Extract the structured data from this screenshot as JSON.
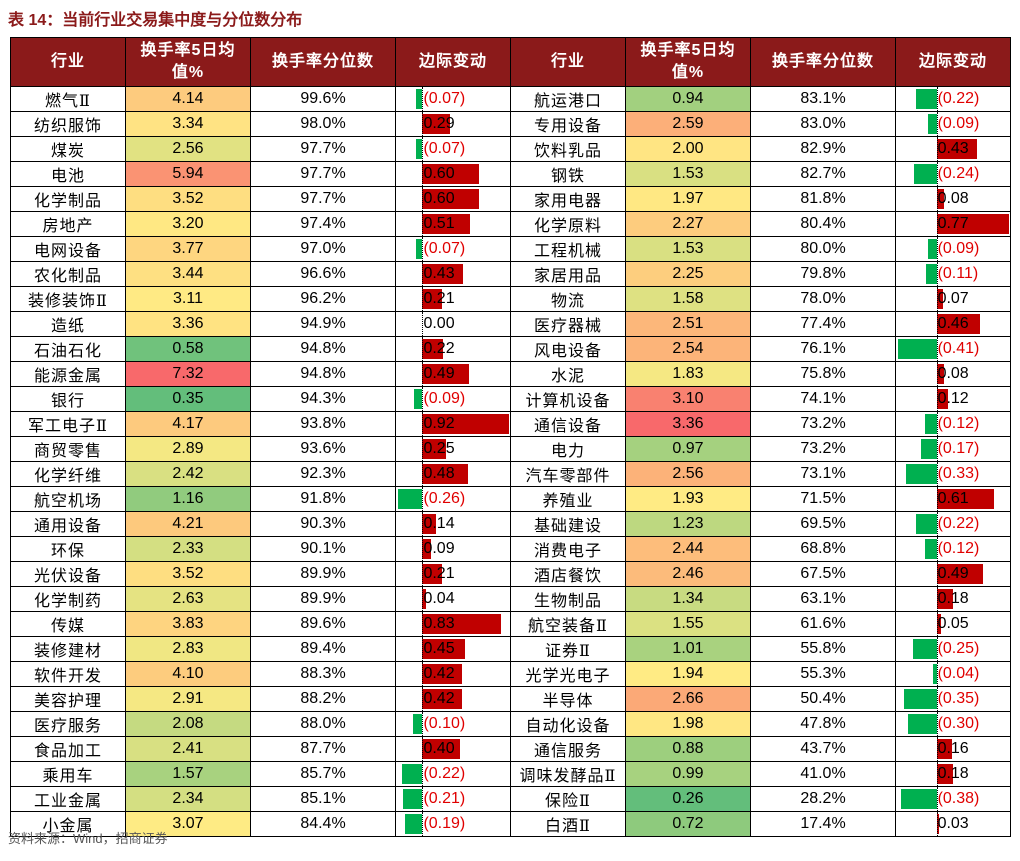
{
  "header": {
    "title": "表 14：当前行业交易集中度与分位数分布",
    "source": "资料来源：Wind，招商证券"
  },
  "table": {
    "columns": [
      "行业",
      "换手率5日均值%",
      "换手率分位数",
      "边际变动"
    ],
    "left": [
      {
        "industry": "燃气Ⅱ",
        "turnover": "4.14",
        "percentile": "99.6%",
        "change": {
          "value": -0.07,
          "label": "(0.07)"
        }
      },
      {
        "industry": "纺织服饰",
        "turnover": "3.34",
        "percentile": "98.0%",
        "change": {
          "value": 0.29,
          "label": "0.29"
        }
      },
      {
        "industry": "煤炭",
        "turnover": "2.56",
        "percentile": "97.7%",
        "change": {
          "value": -0.07,
          "label": "(0.07)"
        }
      },
      {
        "industry": "电池",
        "turnover": "5.94",
        "percentile": "97.7%",
        "change": {
          "value": 0.6,
          "label": "0.60"
        }
      },
      {
        "industry": "化学制品",
        "turnover": "3.52",
        "percentile": "97.7%",
        "change": {
          "value": 0.6,
          "label": "0.60"
        }
      },
      {
        "industry": "房地产",
        "turnover": "3.20",
        "percentile": "97.4%",
        "change": {
          "value": 0.51,
          "label": "0.51"
        }
      },
      {
        "industry": "电网设备",
        "turnover": "3.77",
        "percentile": "97.0%",
        "change": {
          "value": -0.07,
          "label": "(0.07)"
        }
      },
      {
        "industry": "农化制品",
        "turnover": "3.44",
        "percentile": "96.6%",
        "change": {
          "value": 0.43,
          "label": "0.43"
        }
      },
      {
        "industry": "装修装饰Ⅱ",
        "turnover": "3.11",
        "percentile": "96.2%",
        "change": {
          "value": 0.21,
          "label": "0.21"
        }
      },
      {
        "industry": "造纸",
        "turnover": "3.36",
        "percentile": "94.9%",
        "change": {
          "value": 0,
          "label": "0.00"
        }
      },
      {
        "industry": "石油石化",
        "turnover": "0.58",
        "percentile": "94.8%",
        "change": {
          "value": 0.22,
          "label": "0.22"
        }
      },
      {
        "industry": "能源金属",
        "turnover": "7.32",
        "percentile": "94.8%",
        "change": {
          "value": 0.49,
          "label": "0.49"
        }
      },
      {
        "industry": "银行",
        "turnover": "0.35",
        "percentile": "94.3%",
        "change": {
          "value": -0.09,
          "label": "(0.09)"
        }
      },
      {
        "industry": "军工电子Ⅱ",
        "turnover": "4.17",
        "percentile": "93.8%",
        "change": {
          "value": 0.92,
          "label": "0.92"
        }
      },
      {
        "industry": "商贸零售",
        "turnover": "2.89",
        "percentile": "93.6%",
        "change": {
          "value": 0.25,
          "label": "0.25"
        }
      },
      {
        "industry": "化学纤维",
        "turnover": "2.42",
        "percentile": "92.3%",
        "change": {
          "value": 0.48,
          "label": "0.48"
        }
      },
      {
        "industry": "航空机场",
        "turnover": "1.16",
        "percentile": "91.8%",
        "change": {
          "value": -0.26,
          "label": "(0.26)"
        }
      },
      {
        "industry": "通用设备",
        "turnover": "4.21",
        "percentile": "90.3%",
        "change": {
          "value": 0.14,
          "label": "0.14"
        }
      },
      {
        "industry": "环保",
        "turnover": "2.33",
        "percentile": "90.1%",
        "change": {
          "value": 0.09,
          "label": "0.09"
        }
      },
      {
        "industry": "光伏设备",
        "turnover": "3.52",
        "percentile": "89.9%",
        "change": {
          "value": 0.21,
          "label": "0.21"
        }
      },
      {
        "industry": "化学制药",
        "turnover": "2.63",
        "percentile": "89.9%",
        "change": {
          "value": 0.04,
          "label": "0.04"
        }
      },
      {
        "industry": "传媒",
        "turnover": "3.83",
        "percentile": "89.6%",
        "change": {
          "value": 0.83,
          "label": "0.83"
        }
      },
      {
        "industry": "装修建材",
        "turnover": "2.83",
        "percentile": "89.4%",
        "change": {
          "value": 0.45,
          "label": "0.45"
        }
      },
      {
        "industry": "软件开发",
        "turnover": "4.10",
        "percentile": "88.3%",
        "change": {
          "value": 0.42,
          "label": "0.42"
        }
      },
      {
        "industry": "美容护理",
        "turnover": "2.91",
        "percentile": "88.2%",
        "change": {
          "value": 0.42,
          "label": "0.42"
        }
      },
      {
        "industry": "医疗服务",
        "turnover": "2.08",
        "percentile": "88.0%",
        "change": {
          "value": -0.1,
          "label": "(0.10)"
        }
      },
      {
        "industry": "食品加工",
        "turnover": "2.41",
        "percentile": "87.7%",
        "change": {
          "value": 0.4,
          "label": "0.40"
        }
      },
      {
        "industry": "乘用车",
        "turnover": "1.57",
        "percentile": "85.7%",
        "change": {
          "value": -0.22,
          "label": "(0.22)"
        }
      },
      {
        "industry": "工业金属",
        "turnover": "2.34",
        "percentile": "85.1%",
        "change": {
          "value": -0.21,
          "label": "(0.21)"
        }
      },
      {
        "industry": "小金属",
        "turnover": "3.07",
        "percentile": "84.4%",
        "change": {
          "value": -0.19,
          "label": "(0.19)"
        }
      }
    ],
    "right": [
      {
        "industry": "航运港口",
        "turnover": "0.94",
        "percentile": "83.1%",
        "change": {
          "value": -0.22,
          "label": "(0.22)"
        }
      },
      {
        "industry": "专用设备",
        "turnover": "2.59",
        "percentile": "83.0%",
        "change": {
          "value": -0.09,
          "label": "(0.09)"
        }
      },
      {
        "industry": "饮料乳品",
        "turnover": "2.00",
        "percentile": "82.9%",
        "change": {
          "value": 0.43,
          "label": "0.43"
        }
      },
      {
        "industry": "钢铁",
        "turnover": "1.53",
        "percentile": "82.7%",
        "change": {
          "value": -0.24,
          "label": "(0.24)"
        }
      },
      {
        "industry": "家用电器",
        "turnover": "1.97",
        "percentile": "81.8%",
        "change": {
          "value": 0.08,
          "label": "0.08"
        }
      },
      {
        "industry": "化学原料",
        "turnover": "2.27",
        "percentile": "80.4%",
        "change": {
          "value": 0.77,
          "label": "0.77"
        }
      },
      {
        "industry": "工程机械",
        "turnover": "1.53",
        "percentile": "80.0%",
        "change": {
          "value": -0.09,
          "label": "(0.09)"
        }
      },
      {
        "industry": "家居用品",
        "turnover": "2.25",
        "percentile": "79.8%",
        "change": {
          "value": -0.11,
          "label": "(0.11)"
        }
      },
      {
        "industry": "物流",
        "turnover": "1.58",
        "percentile": "78.0%",
        "change": {
          "value": 0.07,
          "label": "0.07"
        }
      },
      {
        "industry": "医疗器械",
        "turnover": "2.51",
        "percentile": "77.4%",
        "change": {
          "value": 0.46,
          "label": "0.46"
        }
      },
      {
        "industry": "风电设备",
        "turnover": "2.54",
        "percentile": "76.1%",
        "change": {
          "value": -0.41,
          "label": "(0.41)"
        }
      },
      {
        "industry": "水泥",
        "turnover": "1.83",
        "percentile": "75.8%",
        "change": {
          "value": 0.08,
          "label": "0.08"
        }
      },
      {
        "industry": "计算机设备",
        "turnover": "3.10",
        "percentile": "74.1%",
        "change": {
          "value": 0.12,
          "label": "0.12"
        }
      },
      {
        "industry": "通信设备",
        "turnover": "3.36",
        "percentile": "73.2%",
        "change": {
          "value": -0.12,
          "label": "(0.12)"
        }
      },
      {
        "industry": "电力",
        "turnover": "0.97",
        "percentile": "73.2%",
        "change": {
          "value": -0.17,
          "label": "(0.17)"
        }
      },
      {
        "industry": "汽车零部件",
        "turnover": "2.56",
        "percentile": "73.1%",
        "change": {
          "value": -0.33,
          "label": "(0.33)"
        }
      },
      {
        "industry": "养殖业",
        "turnover": "1.93",
        "percentile": "71.5%",
        "change": {
          "value": 0.61,
          "label": "0.61"
        }
      },
      {
        "industry": "基础建设",
        "turnover": "1.23",
        "percentile": "69.5%",
        "change": {
          "value": -0.22,
          "label": "(0.22)"
        }
      },
      {
        "industry": "消费电子",
        "turnover": "2.44",
        "percentile": "68.8%",
        "change": {
          "value": -0.12,
          "label": "(0.12)"
        }
      },
      {
        "industry": "酒店餐饮",
        "turnover": "2.46",
        "percentile": "67.5%",
        "change": {
          "value": 0.49,
          "label": "0.49"
        }
      },
      {
        "industry": "生物制品",
        "turnover": "1.34",
        "percentile": "63.1%",
        "change": {
          "value": 0.18,
          "label": "0.18"
        }
      },
      {
        "industry": "航空装备Ⅱ",
        "turnover": "1.55",
        "percentile": "61.6%",
        "change": {
          "value": 0.05,
          "label": "0.05"
        }
      },
      {
        "industry": "证券Ⅱ",
        "turnover": "1.01",
        "percentile": "55.8%",
        "change": {
          "value": -0.25,
          "label": "(0.25)"
        }
      },
      {
        "industry": "光学光电子",
        "turnover": "1.94",
        "percentile": "55.3%",
        "change": {
          "value": -0.04,
          "label": "(0.04)"
        }
      },
      {
        "industry": "半导体",
        "turnover": "2.66",
        "percentile": "50.4%",
        "change": {
          "value": -0.35,
          "label": "(0.35)"
        }
      },
      {
        "industry": "自动化设备",
        "turnover": "1.98",
        "percentile": "47.8%",
        "change": {
          "value": -0.3,
          "label": "(0.30)"
        }
      },
      {
        "industry": "通信服务",
        "turnover": "0.88",
        "percentile": "43.7%",
        "change": {
          "value": 0.16,
          "label": "0.16"
        }
      },
      {
        "industry": "调味发酵品Ⅱ",
        "turnover": "0.99",
        "percentile": "41.0%",
        "change": {
          "value": 0.18,
          "label": "0.18"
        }
      },
      {
        "industry": "保险Ⅱ",
        "turnover": "0.26",
        "percentile": "28.2%",
        "change": {
          "value": -0.38,
          "label": "(0.38)"
        }
      },
      {
        "industry": "白酒Ⅱ",
        "turnover": "0.72",
        "percentile": "17.4%",
        "change": {
          "value": 0.03,
          "label": "0.03"
        }
      }
    ]
  }
}
